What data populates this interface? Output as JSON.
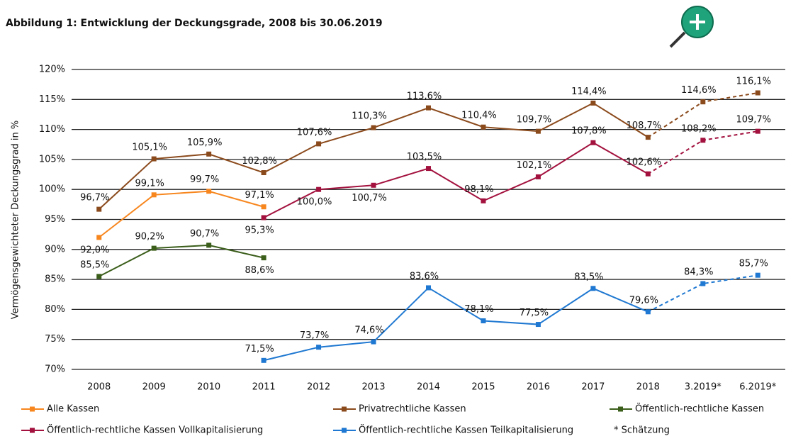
{
  "chart_data": {
    "type": "line",
    "title": "Abbildung 1: Entwicklung der Deckungsgrade, 2008 bis 30.06.2019",
    "y_label": "Vermögensgewichteter Deckungsgrad in %",
    "categories": [
      "2008",
      "2009",
      "2010",
      "2011",
      "2012",
      "2013",
      "2014",
      "2015",
      "2016",
      "2017",
      "2018",
      "3.2019*",
      "6.2019*"
    ],
    "ylim": [
      70,
      120
    ],
    "yticks": [
      {
        "value": 70,
        "label": "70%"
      },
      {
        "value": 75,
        "label": "75%"
      },
      {
        "value": 80,
        "label": "80%"
      },
      {
        "value": 85,
        "label": "85%"
      },
      {
        "value": 90,
        "label": "90%"
      },
      {
        "value": 95,
        "label": "95%"
      },
      {
        "value": 100,
        "label": "100%"
      },
      {
        "value": 105,
        "label": "105%"
      },
      {
        "value": 110,
        "label": "110%"
      },
      {
        "value": 115,
        "label": "115%"
      },
      {
        "value": 120,
        "label": "120%"
      }
    ],
    "grid": true,
    "dash_from": 10,
    "legend_note": "* Schätzung",
    "series": [
      {
        "name": "Alle Kassen",
        "color": "#f7861e",
        "values": [
          92.0,
          99.1,
          99.7,
          97.1,
          null,
          null,
          null,
          null,
          null,
          null,
          null,
          null,
          null
        ],
        "value_labels": [
          "92,0%",
          "99,1%",
          "99,7%",
          "97,1%",
          null,
          null,
          null,
          null,
          null,
          null,
          null,
          null,
          null
        ]
      },
      {
        "name": "Privatrechtliche Kassen",
        "color": "#8b4a1c",
        "values": [
          96.7,
          105.1,
          105.9,
          102.8,
          107.6,
          110.3,
          113.6,
          110.4,
          109.7,
          114.4,
          108.7,
          114.6,
          116.1
        ],
        "value_labels": [
          "96,7%",
          "105,1%",
          "105,9%",
          "102,8%",
          "107,6%",
          "110,3%",
          "113,6%",
          "110,4%",
          "109,7%",
          "114,4%",
          "108,7%",
          "114,6%",
          "116,1%"
        ]
      },
      {
        "name": "Öffentlich-rechtliche Kassen",
        "color": "#3b5e1b",
        "values": [
          85.5,
          90.2,
          90.7,
          88.6,
          null,
          null,
          null,
          null,
          null,
          null,
          null,
          null,
          null
        ],
        "value_labels": [
          "85,5%",
          "90,2%",
          "90,7%",
          "88,6%",
          null,
          null,
          null,
          null,
          null,
          null,
          null,
          null,
          null
        ]
      },
      {
        "name": "Öffentlich-rechtliche Kassen Vollkapitalisierung",
        "color": "#a3123f",
        "values": [
          null,
          null,
          null,
          95.3,
          100.0,
          100.7,
          103.5,
          98.1,
          102.1,
          107.8,
          102.6,
          108.2,
          109.7
        ],
        "value_labels": [
          null,
          null,
          null,
          "95,3%",
          "100,0%",
          "100,7%",
          "103,5%",
          "98,1%",
          "102,1%",
          "107,8%",
          "102,6%",
          "108,2%",
          "109,7%"
        ]
      },
      {
        "name": "Öffentlich-rechtliche Kassen Teilkapitalisierung",
        "color": "#1f78d1",
        "values": [
          null,
          null,
          null,
          71.5,
          73.7,
          74.6,
          83.6,
          78.1,
          77.5,
          83.5,
          79.6,
          84.3,
          85.7
        ],
        "value_labels": [
          null,
          null,
          null,
          "71,5%",
          "73,7%",
          "74,6%",
          "83,6%",
          "78,1%",
          "77,5%",
          "83,5%",
          "79,6%",
          "84,3%",
          "85,7%"
        ]
      }
    ]
  }
}
